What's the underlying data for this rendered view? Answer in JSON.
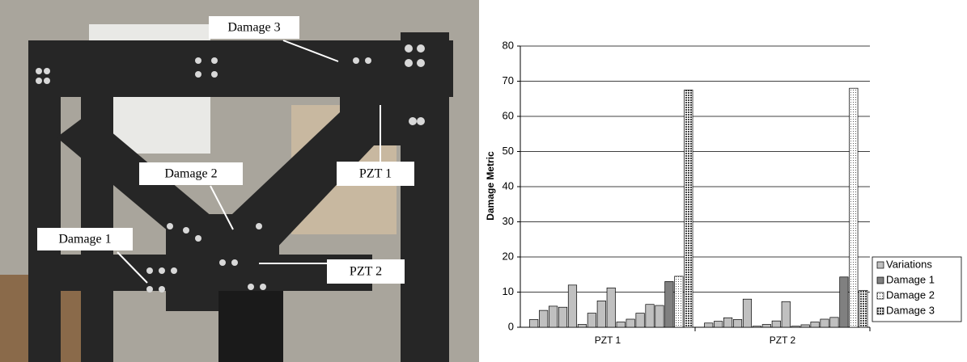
{
  "photo_labels": [
    "Damage 3",
    "Damage 2",
    "Damage 1",
    "PZT 1",
    "PZT 2"
  ],
  "chart_data": {
    "type": "bar",
    "y_label": "Damage Metric",
    "categories": [
      "PZT 1",
      "PZT 2"
    ],
    "series": [
      {
        "name": "Variations",
        "color": "#c0c0c0",
        "values": [
          [
            2.2,
            4.8,
            6,
            5.7,
            12,
            0.8,
            4,
            7.5,
            11.2,
            1.5,
            2.3,
            4,
            6.5,
            6.2
          ],
          [
            1.2,
            1.7,
            2.7,
            2.2,
            8,
            0.3,
            0.8,
            1.8,
            7.3,
            0.3,
            0.7,
            1.5,
            2.3,
            2.8
          ]
        ]
      },
      {
        "name": "Damage 1",
        "color": "#808080",
        "values": [
          13,
          14.3
        ]
      },
      {
        "name": "Damage 2",
        "color": "#c0c0c0",
        "pattern": "dots",
        "values": [
          14.5,
          68
        ]
      },
      {
        "name": "Damage 3",
        "color": "#808080",
        "pattern": "crosshatch",
        "values": [
          67.5,
          10.5
        ]
      }
    ],
    "ylim": [
      0,
      80
    ],
    "yticks": [
      0,
      10,
      20,
      30,
      40,
      50,
      60,
      70,
      80
    ],
    "grid": true,
    "legend": "right"
  }
}
